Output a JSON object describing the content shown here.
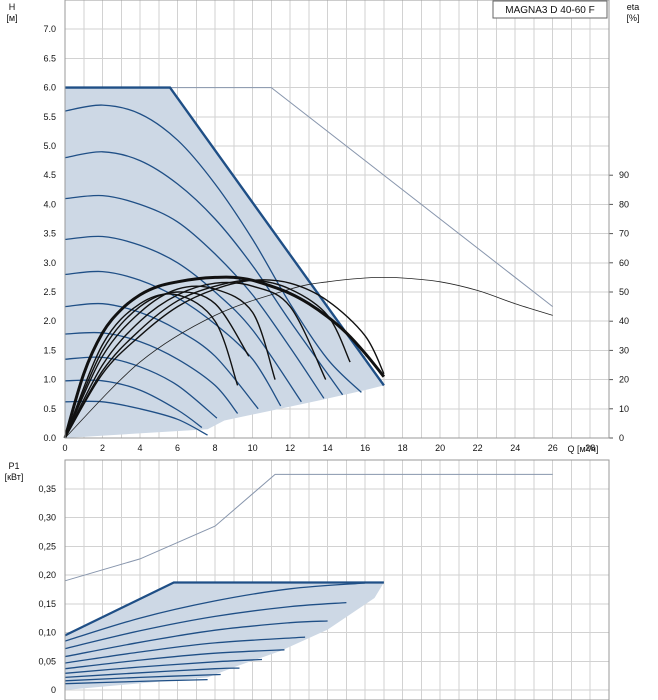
{
  "chart_data": [
    {
      "type": "line",
      "title": "MAGNA3 D 40-60 F",
      "xlabel": "Q [м³/ч]",
      "ylabel_name": "H",
      "ylabel_unit": "[м]",
      "y2label_name": "eta",
      "y2label_unit": "[%]",
      "xlim": [
        0,
        29
      ],
      "ylim": [
        0,
        7.5
      ],
      "y2lim": [
        0,
        150
      ],
      "x_ticks": [
        "0",
        "2",
        "4",
        "6",
        "8",
        "10",
        "12",
        "14",
        "16",
        "18",
        "20",
        "22",
        "24",
        "26",
        "28"
      ],
      "y_ticks": [
        "0.0",
        "0.5",
        "1.0",
        "1.5",
        "2.0",
        "2.5",
        "3.0",
        "3.5",
        "4.0",
        "4.5",
        "5.0",
        "5.5",
        "6.0",
        "6.5",
        "7.0"
      ],
      "y2_ticks": [
        "0",
        "10",
        "20",
        "30",
        "40",
        "50",
        "60",
        "70",
        "80",
        "90"
      ],
      "grid": true,
      "colors": {
        "pump_curves": "#1f4f86",
        "operating_area": "#cdd8e5",
        "efficiency": "#111111",
        "twin_pump": "#8896ad"
      },
      "operating_area": {
        "x": [
          0,
          5.6,
          17.0,
          16.0,
          13.5,
          11.0,
          8.5,
          7.6,
          0
        ],
        "y": [
          6.0,
          6.0,
          0.9,
          0.82,
          0.64,
          0.47,
          0.3,
          0.15,
          0.0
        ]
      },
      "head_curves": [
        {
          "q": [
            0,
            5.6,
            17.0
          ],
          "h": [
            6.0,
            6.0,
            0.9
          ]
        },
        {
          "q": [
            0,
            2,
            4,
            6,
            8,
            10,
            12,
            14,
            15.8
          ],
          "h": [
            5.6,
            5.7,
            5.55,
            5.1,
            4.35,
            3.4,
            2.3,
            1.35,
            0.78
          ]
        },
        {
          "q": [
            0,
            2,
            4,
            6,
            8,
            10,
            12,
            14.8
          ],
          "h": [
            4.8,
            4.9,
            4.75,
            4.35,
            3.75,
            2.95,
            2.0,
            0.74
          ]
        },
        {
          "q": [
            0,
            2,
            4,
            6,
            8,
            10,
            12,
            13.8
          ],
          "h": [
            4.1,
            4.15,
            4.0,
            3.7,
            3.15,
            2.45,
            1.55,
            0.68
          ]
        },
        {
          "q": [
            0,
            2,
            4,
            6,
            8,
            10,
            12.6
          ],
          "h": [
            3.4,
            3.45,
            3.3,
            3.0,
            2.5,
            1.85,
            0.62
          ]
        },
        {
          "q": [
            0,
            2,
            4,
            6,
            8,
            10,
            11.5
          ],
          "h": [
            2.8,
            2.85,
            2.7,
            2.4,
            1.95,
            1.35,
            0.55
          ]
        },
        {
          "q": [
            0,
            2,
            4,
            6,
            8,
            10.3
          ],
          "h": [
            2.25,
            2.3,
            2.15,
            1.85,
            1.4,
            0.5
          ]
        },
        {
          "q": [
            0,
            2,
            4,
            6,
            8,
            9.2
          ],
          "h": [
            1.78,
            1.8,
            1.65,
            1.35,
            0.9,
            0.42
          ]
        },
        {
          "q": [
            0,
            2,
            4,
            6,
            8.1
          ],
          "h": [
            1.35,
            1.38,
            1.22,
            0.9,
            0.34
          ]
        },
        {
          "q": [
            0,
            2,
            4,
            6,
            7.3
          ],
          "h": [
            0.98,
            0.98,
            0.82,
            0.48,
            0.18
          ]
        },
        {
          "q": [
            0,
            2,
            4,
            6,
            7.6
          ],
          "h": [
            0.62,
            0.62,
            0.5,
            0.32,
            0.05
          ]
        }
      ],
      "twin_pump_curve": {
        "q": [
          0,
          11.0,
          26.0
        ],
        "h": [
          6.0,
          6.0,
          2.25
        ]
      },
      "efficiency_curves": [
        {
          "q": [
            0,
            1,
            2,
            3,
            4,
            5,
            6,
            7,
            8,
            9,
            10,
            11,
            12,
            13,
            14,
            15,
            16,
            17
          ],
          "eta": [
            0,
            22,
            36,
            44,
            49,
            52,
            53.5,
            54.5,
            55,
            55,
            54,
            52,
            49.5,
            46,
            41.5,
            36,
            29,
            21
          ]
        },
        {
          "q": [
            0,
            2,
            4,
            6,
            8,
            9.8
          ],
          "eta": [
            0,
            30,
            45,
            50,
            46,
            28
          ]
        },
        {
          "q": [
            0,
            2,
            4,
            6,
            8,
            9.2
          ],
          "eta": [
            0,
            32,
            46,
            49,
            40,
            18
          ]
        },
        {
          "q": [
            0,
            2,
            4,
            6,
            8,
            10,
            11.2
          ],
          "eta": [
            0,
            28,
            43,
            51,
            51,
            43,
            20
          ]
        },
        {
          "q": [
            0,
            2,
            4,
            6,
            8,
            10,
            12,
            13.9
          ],
          "eta": [
            0,
            25,
            40,
            49,
            53,
            52,
            45,
            20
          ]
        },
        {
          "q": [
            0,
            2,
            4,
            6,
            8,
            10,
            12,
            14,
            15.2
          ],
          "eta": [
            0,
            23,
            37,
            47,
            52,
            54,
            51,
            42,
            26
          ]
        },
        {
          "q": [
            0,
            2,
            4,
            6,
            8,
            10,
            12,
            14,
            16,
            17.0
          ],
          "eta": [
            0,
            22,
            35,
            45,
            51,
            54,
            53,
            47,
            35,
            22
          ]
        }
      ],
      "twin_efficiency_curve": {
        "q": [
          0,
          4,
          8,
          12,
          14,
          16,
          17,
          18,
          20,
          22,
          24,
          26
        ],
        "eta": [
          0,
          26,
          42,
          51,
          53.5,
          54.8,
          55,
          54.8,
          53.5,
          50.5,
          46,
          42
        ]
      }
    },
    {
      "type": "line",
      "ylabel_name": "P1",
      "ylabel_unit": "[кВт]",
      "xlim": [
        0,
        29
      ],
      "ylim": [
        0,
        0.4
      ],
      "y_ticks": [
        "0",
        "0,05",
        "0,10",
        "0,15",
        "0,20",
        "0,25",
        "0,30",
        "0,35"
      ],
      "grid": true,
      "operating_area": {
        "x": [
          0,
          5.8,
          17.0,
          16.5,
          14.0,
          11.5,
          9.2,
          7.6,
          0
        ],
        "y": [
          0.095,
          0.187,
          0.187,
          0.16,
          0.105,
          0.068,
          0.042,
          0.022,
          0.0
        ]
      },
      "power_curves": [
        {
          "q": [
            0,
            5.8,
            17.0
          ],
          "p": [
            0.095,
            0.187,
            0.187
          ]
        },
        {
          "q": [
            0,
            4,
            8,
            12,
            16.0
          ],
          "p": [
            0.085,
            0.125,
            0.155,
            0.176,
            0.186
          ]
        },
        {
          "q": [
            0,
            4,
            8,
            12,
            15.0
          ],
          "p": [
            0.072,
            0.103,
            0.128,
            0.145,
            0.152
          ]
        },
        {
          "q": [
            0,
            4,
            8,
            12,
            14.0
          ],
          "p": [
            0.058,
            0.083,
            0.104,
            0.117,
            0.12
          ]
        },
        {
          "q": [
            0,
            4,
            8,
            12.8
          ],
          "p": [
            0.047,
            0.066,
            0.082,
            0.092
          ]
        },
        {
          "q": [
            0,
            4,
            8,
            11.7
          ],
          "p": [
            0.037,
            0.052,
            0.064,
            0.07
          ]
        },
        {
          "q": [
            0,
            4,
            8,
            10.5
          ],
          "p": [
            0.029,
            0.04,
            0.049,
            0.053
          ]
        },
        {
          "q": [
            0,
            4,
            8,
            9.3
          ],
          "p": [
            0.022,
            0.03,
            0.037,
            0.038
          ]
        },
        {
          "q": [
            0,
            4,
            8.3
          ],
          "p": [
            0.016,
            0.022,
            0.027
          ]
        },
        {
          "q": [
            0,
            4,
            7.6
          ],
          "p": [
            0.011,
            0.015,
            0.018
          ]
        }
      ],
      "twin_power_curve": {
        "q": [
          0,
          4,
          8,
          11.2,
          26.0
        ],
        "p": [
          0.19,
          0.228,
          0.285,
          0.375,
          0.375
        ]
      }
    }
  ]
}
